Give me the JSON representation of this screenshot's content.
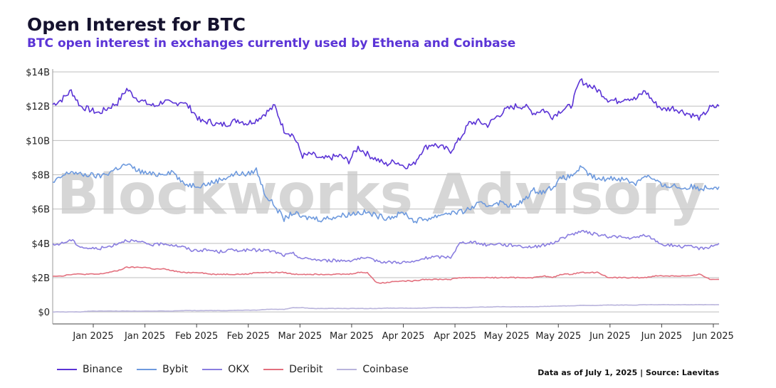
{
  "header": {
    "title": "Open Interest for BTC",
    "subtitle": "BTC open interest in exchanges currently used by Ethena and Coinbase"
  },
  "watermark": "Blockworks Advisory",
  "footer": {
    "source": "Data as of July 1, 2025 | Source: Laevitas"
  },
  "chart_data": {
    "type": "line",
    "title": "Open Interest for BTC",
    "subtitle": "BTC open interest in exchanges currently used by Ethena and Coinbase",
    "ylim": [
      -0.7,
      14
    ],
    "y_ticks": [
      0,
      2,
      4,
      6,
      8,
      10,
      12,
      14
    ],
    "y_tick_labels": [
      "$0",
      "$2B",
      "$4B",
      "$6B",
      "$8B",
      "$10B",
      "$12B",
      "$14B"
    ],
    "y_unit": "USD billions",
    "x_tick_labels": [
      "Jan 2025",
      "Jan 2025",
      "Feb 2025",
      "Feb 2025",
      "Mar 2025",
      "Mar 2025",
      "Apr 2025",
      "Apr 2025",
      "May 2025",
      "May 2025",
      "Jun 2025",
      "Jun 2025",
      "Jun 2025"
    ],
    "grid": {
      "horizontal": true,
      "vertical": false
    },
    "legend_position": "bottom-left",
    "n_points": 51,
    "series": [
      {
        "name": "Binance",
        "color": "#5b34d6",
        "values": [
          12.1,
          12.4,
          12.9,
          12.0,
          11.8,
          11.6,
          11.9,
          12.2,
          13.0,
          12.5,
          12.2,
          12.0,
          12.3,
          12.1,
          12.3,
          11.8,
          11.1,
          11.1,
          10.9,
          11.0,
          11.2,
          11.0,
          11.2,
          11.6,
          12.0,
          10.6,
          10.3,
          9.1,
          9.2,
          8.9,
          9.0,
          9.1,
          8.8,
          9.6,
          9.2,
          8.9,
          8.6,
          8.8,
          8.5,
          8.6,
          9.5,
          9.8,
          9.6,
          9.4,
          10.1,
          11.0,
          11.1,
          10.9,
          11.4,
          11.8,
          12.0
        ]
      },
      {
        "name": "Bybit",
        "color": "#6e9ade",
        "values": [
          7.5,
          7.9,
          8.2,
          8.0,
          8.0,
          7.9,
          8.1,
          8.4,
          8.6,
          8.3,
          8.1,
          8.0,
          8.1,
          8.2,
          7.5,
          7.4,
          7.4,
          7.5,
          7.7,
          7.9,
          8.1,
          8.0,
          8.3,
          6.8,
          6.2,
          5.4,
          5.8,
          5.5,
          5.5,
          5.4,
          5.5,
          5.6,
          5.7,
          5.8,
          5.8,
          5.6,
          5.5,
          5.6,
          5.8,
          5.3,
          5.4,
          5.5,
          5.7,
          5.8,
          5.8,
          6.0,
          6.3,
          6.2,
          6.4,
          6.3,
          6.1
        ]
      },
      {
        "name": "OKX",
        "color": "#8a7ee0",
        "values": [
          3.9,
          4.0,
          4.2,
          3.8,
          3.7,
          3.7,
          3.8,
          4.0,
          4.2,
          4.1,
          4.0,
          3.9,
          4.0,
          3.9,
          3.8,
          3.6,
          3.6,
          3.6,
          3.5,
          3.6,
          3.6,
          3.6,
          3.6,
          3.6,
          3.5,
          3.3,
          3.4,
          3.1,
          3.1,
          3.0,
          3.0,
          3.0,
          3.0,
          3.1,
          3.1,
          3.0,
          2.9,
          2.9,
          2.9,
          2.9,
          3.1,
          3.2,
          3.2,
          3.2,
          4.0,
          4.1,
          4.0,
          3.9,
          4.0,
          3.9,
          3.9
        ]
      },
      {
        "name": "Deribit",
        "color": "#e3707e",
        "values": [
          2.1,
          2.1,
          2.2,
          2.2,
          2.2,
          2.2,
          2.3,
          2.4,
          2.6,
          2.6,
          2.6,
          2.5,
          2.5,
          2.4,
          2.3,
          2.3,
          2.3,
          2.2,
          2.2,
          2.2,
          2.2,
          2.2,
          2.3,
          2.3,
          2.3,
          2.3,
          2.2,
          2.2,
          2.2,
          2.2,
          2.2,
          2.2,
          2.2,
          2.3,
          2.3,
          1.7,
          1.7,
          1.8,
          1.8,
          1.8,
          1.9,
          1.9,
          1.9,
          1.9,
          2.0,
          2.0,
          2.0,
          2.0,
          2.0,
          2.0,
          2.0
        ]
      },
      {
        "name": "Coinbase",
        "color": "#b9b4dc",
        "values": [
          0.0,
          0.0,
          0.0,
          0.0,
          0.05,
          0.05,
          0.05,
          0.05,
          0.05,
          0.05,
          0.05,
          0.05,
          0.05,
          0.05,
          0.08,
          0.08,
          0.08,
          0.08,
          0.08,
          0.08,
          0.1,
          0.1,
          0.1,
          0.15,
          0.15,
          0.15,
          0.25,
          0.25,
          0.2,
          0.2,
          0.2,
          0.2,
          0.2,
          0.2,
          0.2,
          0.2,
          0.22,
          0.22,
          0.22,
          0.22,
          0.22,
          0.25,
          0.25,
          0.25,
          0.25,
          0.25,
          0.28,
          0.28,
          0.3,
          0.3,
          0.3
        ]
      }
    ],
    "series_extra": {
      "Binance": [
        12.0,
        11.6,
        11.8,
        11.4,
        11.8,
        12.0,
        13.5,
        13.2,
        12.9,
        12.4,
        12.3,
        12.5,
        12.4,
        12.9,
        12.2,
        11.8,
        11.9,
        11.7,
        11.5,
        11.3,
        11.9,
        12.0
      ],
      "Bybit": [
        6.6,
        7.1,
        7.0,
        7.3,
        7.8,
        7.9,
        8.4,
        8.0,
        7.7,
        7.8,
        7.8,
        7.7,
        7.5,
        8.0,
        7.7,
        7.3,
        7.4,
        7.2,
        7.3,
        7.2,
        7.3,
        7.3
      ],
      "OKX": [
        3.8,
        3.8,
        3.9,
        4.0,
        4.3,
        4.5,
        4.7,
        4.6,
        4.5,
        4.4,
        4.4,
        4.3,
        4.3,
        4.5,
        4.2,
        3.9,
        3.9,
        3.8,
        3.8,
        3.7,
        3.8,
        4.0
      ],
      "Deribit": [
        2.0,
        2.0,
        2.1,
        2.0,
        2.2,
        2.2,
        2.3,
        2.3,
        2.3,
        2.0,
        2.0,
        2.0,
        2.0,
        2.0,
        2.1,
        2.1,
        2.1,
        2.1,
        2.1,
        2.2,
        1.9,
        1.9
      ],
      "Coinbase": [
        0.3,
        0.3,
        0.32,
        0.33,
        0.35,
        0.35,
        0.38,
        0.38,
        0.38,
        0.4,
        0.4,
        0.4,
        0.4,
        0.42,
        0.42,
        0.42,
        0.42,
        0.42,
        0.42,
        0.42,
        0.42,
        0.42
      ]
    }
  }
}
